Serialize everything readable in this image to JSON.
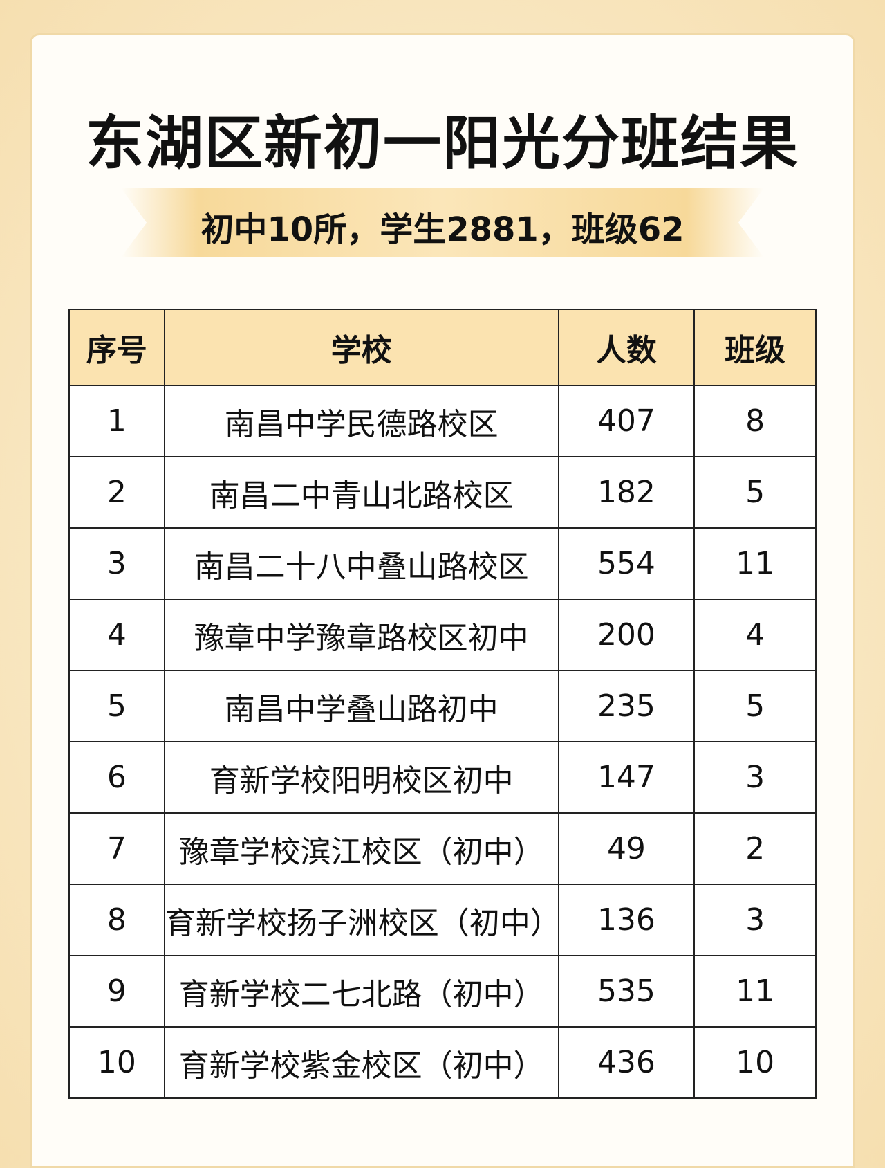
{
  "header": {
    "title": "东湖区新初一阳光分班结果",
    "subtitle": "初中10所，学生2881，班级62"
  },
  "table": {
    "headers": [
      "序号",
      "学校",
      "人数",
      "班级"
    ],
    "rows": [
      [
        "1",
        "南昌中学民德路校区",
        "407",
        "8"
      ],
      [
        "2",
        "南昌二中青山北路校区",
        "182",
        "5"
      ],
      [
        "3",
        "南昌二十八中叠山路校区",
        "554",
        "11"
      ],
      [
        "4",
        "豫章中学豫章路校区初中",
        "200",
        "4"
      ],
      [
        "5",
        "南昌中学叠山路初中",
        "235",
        "5"
      ],
      [
        "6",
        "育新学校阳明校区初中",
        "147",
        "3"
      ],
      [
        "7",
        "豫章学校滨江校区（初中）",
        "49",
        "2"
      ],
      [
        "8",
        "育新学校扬子洲校区（初中）",
        "136",
        "3"
      ],
      [
        "9",
        "育新学校二七北路（初中）",
        "535",
        "11"
      ],
      [
        "10",
        "育新学校紫金校区（初中）",
        "436",
        "10"
      ]
    ]
  }
}
